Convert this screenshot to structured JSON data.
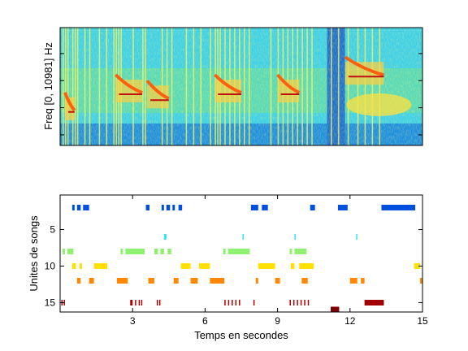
{
  "chart_data": [
    {
      "type": "heatmap",
      "title": "",
      "xlabel": "",
      "ylabel": "Freq [0, 10981] Hz",
      "xlim": [
        0,
        15
      ],
      "ylim": [
        0,
        10981
      ],
      "colormap": "jet",
      "calls": [
        {
          "t": 0.2,
          "f": 0.45,
          "len": 0.4
        },
        {
          "t": 2.3,
          "f": 0.6,
          "len": 1.1
        },
        {
          "t": 3.6,
          "f": 0.55,
          "len": 0.9
        },
        {
          "t": 6.4,
          "f": 0.6,
          "len": 1.1
        },
        {
          "t": 9.0,
          "f": 0.6,
          "len": 0.9
        },
        {
          "t": 11.8,
          "f": 0.75,
          "len": 1.6
        }
      ]
    },
    {
      "type": "scatter",
      "title": "",
      "xlabel": "Temps en secondes",
      "ylabel": "Unites de songs",
      "xlim": [
        0,
        15
      ],
      "ylim": [
        1,
        16
      ],
      "yreverse": true,
      "xticks": [
        "3",
        "6",
        "9",
        "12",
        "15"
      ],
      "yticks": [
        "5",
        "10",
        "15"
      ],
      "units": [
        {
          "unit": 2,
          "color": "#0050e0",
          "segments": [
            [
              0.5,
              0.6
            ],
            [
              0.7,
              0.85
            ],
            [
              0.95,
              1.2
            ],
            [
              3.55,
              3.7
            ],
            [
              4.2,
              4.3
            ],
            [
              4.4,
              4.55
            ],
            [
              4.65,
              4.75
            ],
            [
              4.9,
              5.05
            ],
            [
              7.9,
              8.2
            ],
            [
              8.35,
              8.6
            ],
            [
              10.35,
              10.55
            ],
            [
              11.5,
              11.9
            ],
            [
              13.3,
              14.7
            ]
          ]
        },
        {
          "unit": 6,
          "color": "#30e0ff",
          "segments": [
            [
              4.3,
              4.4
            ],
            [
              7.55,
              7.6
            ],
            [
              9.7,
              9.75
            ],
            [
              12.25,
              12.3
            ]
          ]
        },
        {
          "unit": 8,
          "color": "#90f070",
          "segments": [
            [
              0.1,
              0.2
            ],
            [
              0.3,
              0.55
            ],
            [
              2.5,
              2.6
            ],
            [
              2.7,
              3.5
            ],
            [
              3.9,
              4.05
            ],
            [
              4.15,
              4.3
            ],
            [
              4.45,
              4.6
            ],
            [
              6.75,
              6.85
            ],
            [
              6.95,
              7.85
            ],
            [
              9.5,
              9.6
            ],
            [
              9.7,
              10.2
            ]
          ]
        },
        {
          "unit": 10,
          "color": "#ffe000",
          "segments": [
            [
              0.5,
              0.65
            ],
            [
              0.8,
              0.9
            ],
            [
              1.4,
              1.95
            ],
            [
              5.0,
              5.4
            ],
            [
              5.75,
              6.2
            ],
            [
              8.2,
              8.9
            ],
            [
              9.55,
              9.7
            ],
            [
              9.9,
              10.5
            ],
            [
              14.65,
              14.9
            ]
          ]
        },
        {
          "unit": 12,
          "color": "#ff8800",
          "segments": [
            [
              0.7,
              0.85
            ],
            [
              1.2,
              1.4
            ],
            [
              2.35,
              2.8
            ],
            [
              3.65,
              3.9
            ],
            [
              4.7,
              4.9
            ],
            [
              5.4,
              5.7
            ],
            [
              6.2,
              6.8
            ],
            [
              8.1,
              8.2
            ],
            [
              8.9,
              9.1
            ],
            [
              10.0,
              10.25
            ],
            [
              12.0,
              12.3
            ],
            [
              12.45,
              12.6
            ],
            [
              14.9,
              15.0
            ]
          ]
        },
        {
          "unit": 15,
          "color": "#b00000",
          "segments": [
            [
              0.05,
              0.1
            ],
            [
              0.15,
              0.2
            ],
            [
              2.9,
              3.0
            ],
            [
              3.1,
              3.15
            ],
            [
              3.25,
              3.3
            ],
            [
              3.35,
              3.4
            ],
            [
              4.0,
              4.05
            ],
            [
              4.1,
              4.15
            ],
            [
              6.8,
              6.85
            ],
            [
              6.95,
              7.0
            ],
            [
              7.1,
              7.15
            ],
            [
              7.25,
              7.3
            ],
            [
              7.4,
              7.45
            ],
            [
              8.0,
              8.05
            ],
            [
              9.5,
              9.55
            ],
            [
              9.65,
              9.7
            ],
            [
              9.8,
              9.85
            ],
            [
              9.95,
              10.0
            ],
            [
              10.1,
              10.15
            ],
            [
              10.25,
              10.3
            ]
          ]
        },
        {
          "unit": 16,
          "color": "#800000",
          "segments": [
            [
              11.2,
              11.55
            ]
          ]
        },
        {
          "unit": 15,
          "color": "#a00000",
          "segments": [
            [
              12.6,
              13.4
            ]
          ]
        }
      ]
    }
  ]
}
